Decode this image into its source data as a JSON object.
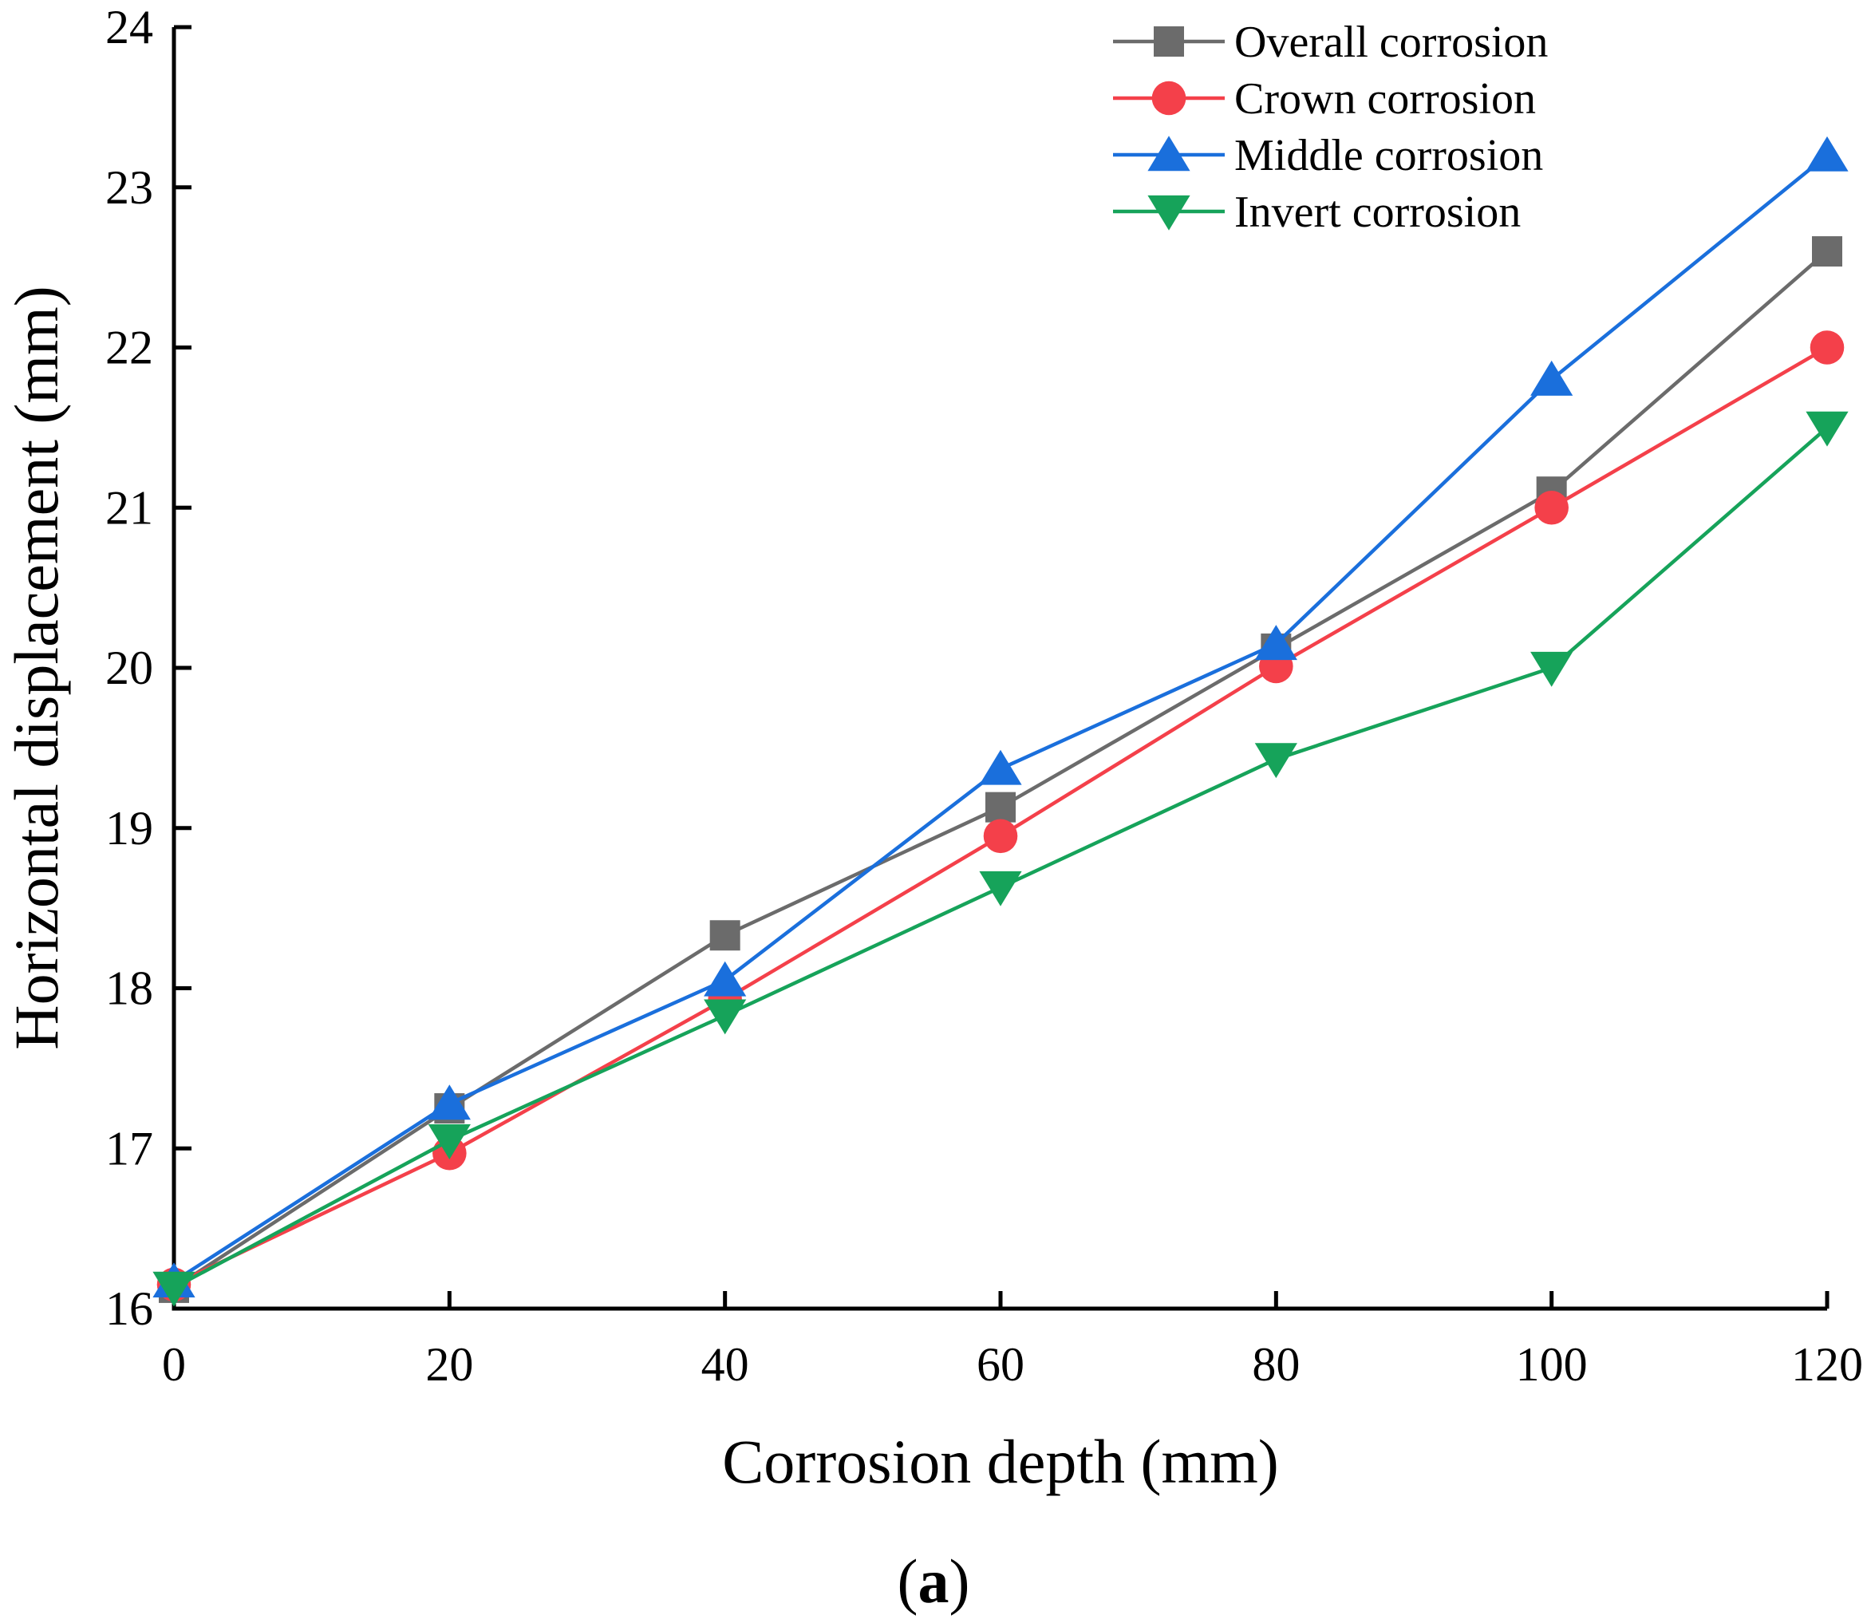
{
  "chart_data": {
    "type": "line",
    "title": "",
    "xlabel": "Corrosion depth (mm)",
    "ylabel": "Horizontal displacement (mm)",
    "x": [
      0,
      20,
      40,
      60,
      80,
      100,
      120
    ],
    "xlim": [
      0,
      120
    ],
    "ylim": [
      16,
      24
    ],
    "xticks": [
      0,
      20,
      40,
      60,
      80,
      100,
      120
    ],
    "yticks": [
      16,
      17,
      18,
      19,
      20,
      21,
      22,
      23,
      24
    ],
    "grid": false,
    "legend_position": "top-right",
    "series": [
      {
        "name": "Overall corrosion",
        "color": "#6b6b6b",
        "marker": "square",
        "values": [
          16.13,
          17.25,
          18.33,
          19.13,
          20.12,
          21.1,
          22.6
        ]
      },
      {
        "name": "Crown corrosion",
        "color": "#f4404a",
        "marker": "circle",
        "values": [
          16.15,
          16.97,
          17.93,
          18.95,
          20.01,
          21.0,
          22.0
        ]
      },
      {
        "name": "Middle corrosion",
        "color": "#1a6fdc",
        "marker": "triangle-up",
        "values": [
          16.17,
          17.28,
          18.05,
          19.37,
          20.15,
          21.8,
          23.2
        ]
      },
      {
        "name": "Invert corrosion",
        "color": "#16a35a",
        "marker": "triangle-down",
        "values": [
          16.13,
          17.05,
          17.83,
          18.63,
          19.43,
          20.0,
          21.5
        ]
      }
    ]
  },
  "caption": {
    "open": "(",
    "letter": "a",
    "close": ")"
  }
}
